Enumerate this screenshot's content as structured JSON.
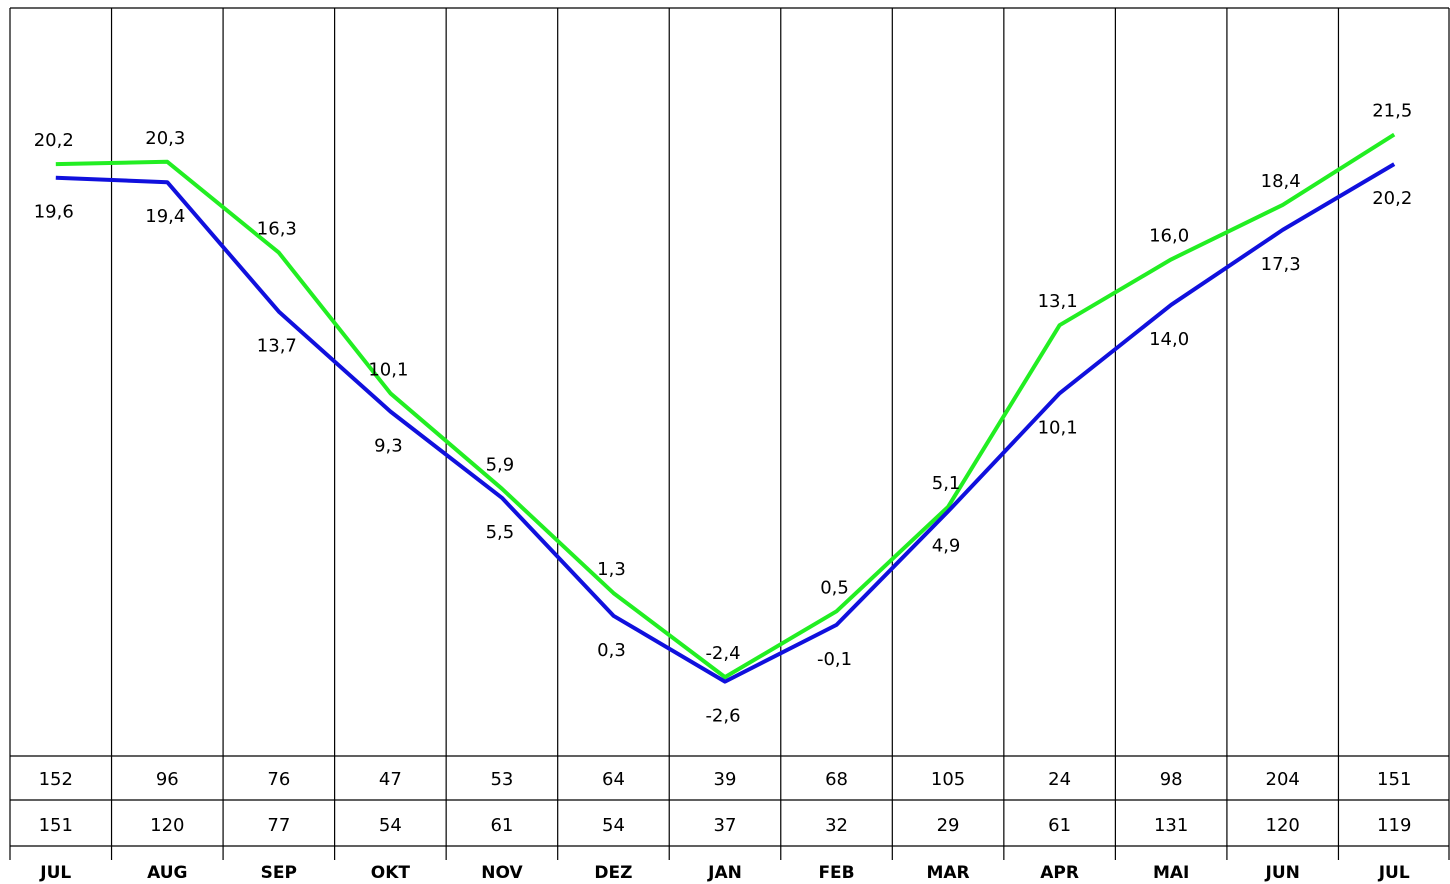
{
  "chart_data": {
    "type": "line",
    "categories": [
      "JUL",
      "AUG",
      "SEP",
      "OKT",
      "NOV",
      "DEZ",
      "JAN",
      "FEB",
      "MAR",
      "APR",
      "MAI",
      "JUN",
      "JUL"
    ],
    "series": [
      {
        "color": "#1010dd",
        "values": [
          19.6,
          19.4,
          13.7,
          9.3,
          5.5,
          0.3,
          -2.6,
          -0.1,
          4.9,
          10.1,
          14.0,
          17.3,
          20.2
        ],
        "labels": [
          "19,6",
          "19,4",
          "13,7",
          "9,3",
          "5,5",
          "0,3",
          "-2,6",
          "-0,1",
          "4,9",
          "10,1",
          "14,0",
          "17,3",
          "20,2"
        ]
      },
      {
        "color": "#22ee22",
        "values": [
          20.2,
          20.3,
          16.3,
          10.1,
          5.9,
          1.3,
          -2.4,
          0.5,
          5.1,
          13.1,
          16.0,
          18.4,
          21.5
        ],
        "labels": [
          "20,2",
          "20,3",
          "16,3",
          "10,1",
          "5,9",
          "1,3",
          "-2,4",
          "0,5",
          "5,1",
          "13,1",
          "16,0",
          "18,4",
          "21,5"
        ]
      }
    ],
    "table_rows": [
      [
        "152",
        "96",
        "76",
        "47",
        "53",
        "64",
        "39",
        "68",
        "105",
        "24",
        "98",
        "204",
        "151"
      ],
      [
        "151",
        "120",
        "77",
        "54",
        "61",
        "54",
        "37",
        "32",
        "29",
        "61",
        "131",
        "120",
        "119"
      ]
    ]
  }
}
